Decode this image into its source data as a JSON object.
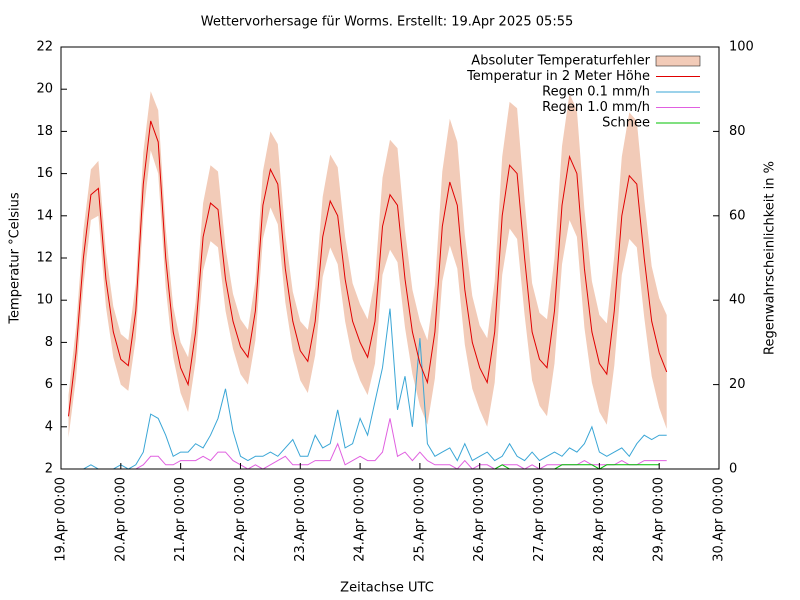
{
  "chart_data": {
    "type": "line",
    "title": "Wettervorhersage für Worms. Erstellt: 19.Apr 2025 05:55",
    "xlabel": "Zeitachse UTC",
    "ylabel": "Temperatur °Celsius",
    "y2label": "Regenwahrscheinlichkeit in %",
    "legend": "top-right",
    "x": [
      "2025-04-19 03:00",
      "2025-04-19 06:00",
      "2025-04-19 09:00",
      "2025-04-19 12:00",
      "2025-04-19 15:00",
      "2025-04-19 18:00",
      "2025-04-19 21:00",
      "2025-04-20 00:00",
      "2025-04-20 03:00",
      "2025-04-20 06:00",
      "2025-04-20 09:00",
      "2025-04-20 12:00",
      "2025-04-20 15:00",
      "2025-04-20 18:00",
      "2025-04-20 21:00",
      "2025-04-21 00:00",
      "2025-04-21 03:00",
      "2025-04-21 06:00",
      "2025-04-21 09:00",
      "2025-04-21 12:00",
      "2025-04-21 15:00",
      "2025-04-21 18:00",
      "2025-04-21 21:00",
      "2025-04-22 00:00",
      "2025-04-22 03:00",
      "2025-04-22 06:00",
      "2025-04-22 09:00",
      "2025-04-22 12:00",
      "2025-04-22 15:00",
      "2025-04-22 18:00",
      "2025-04-22 21:00",
      "2025-04-23 00:00",
      "2025-04-23 03:00",
      "2025-04-23 06:00",
      "2025-04-23 09:00",
      "2025-04-23 12:00",
      "2025-04-23 15:00",
      "2025-04-23 18:00",
      "2025-04-23 21:00",
      "2025-04-24 00:00",
      "2025-04-24 03:00",
      "2025-04-24 06:00",
      "2025-04-24 09:00",
      "2025-04-24 12:00",
      "2025-04-24 15:00",
      "2025-04-24 18:00",
      "2025-04-24 21:00",
      "2025-04-25 00:00",
      "2025-04-25 03:00",
      "2025-04-25 06:00",
      "2025-04-25 09:00",
      "2025-04-25 12:00",
      "2025-04-25 15:00",
      "2025-04-25 18:00",
      "2025-04-25 21:00",
      "2025-04-26 00:00",
      "2025-04-26 03:00",
      "2025-04-26 06:00",
      "2025-04-26 09:00",
      "2025-04-26 12:00",
      "2025-04-26 15:00",
      "2025-04-26 18:00",
      "2025-04-26 21:00",
      "2025-04-27 00:00",
      "2025-04-27 03:00",
      "2025-04-27 06:00",
      "2025-04-27 09:00",
      "2025-04-27 12:00",
      "2025-04-27 15:00",
      "2025-04-27 18:00",
      "2025-04-27 21:00",
      "2025-04-28 00:00",
      "2025-04-28 03:00",
      "2025-04-28 06:00",
      "2025-04-28 09:00",
      "2025-04-28 12:00",
      "2025-04-28 15:00",
      "2025-04-28 18:00",
      "2025-04-28 21:00",
      "2025-04-29 00:00",
      "2025-04-29 03:00"
    ],
    "series": [
      {
        "name": "Absoluter Temperaturfehler",
        "color": "#f2cbb8",
        "style": "errorband",
        "values": [
          1.0,
          1.2,
          1.3,
          1.2,
          1.3,
          1.3,
          1.2,
          1.2,
          1.2,
          1.3,
          1.5,
          1.4,
          1.5,
          1.4,
          1.2,
          1.2,
          1.3,
          1.4,
          1.6,
          1.8,
          1.8,
          1.5,
          1.3,
          1.3,
          1.3,
          1.4,
          1.6,
          1.8,
          1.9,
          1.6,
          1.4,
          1.4,
          1.5,
          1.6,
          1.9,
          2.2,
          2.3,
          2.0,
          1.8,
          1.8,
          1.8,
          2.0,
          2.3,
          2.6,
          2.7,
          2.3,
          2.0,
          2.0,
          2.0,
          2.2,
          2.6,
          3.0,
          3.0,
          2.6,
          2.2,
          2.0,
          2.1,
          2.4,
          2.8,
          3.0,
          3.1,
          2.7,
          2.3,
          2.2,
          2.3,
          2.5,
          2.8,
          3.0,
          3.0,
          2.8,
          2.4,
          2.3,
          2.4,
          2.6,
          2.8,
          3.0,
          3.0,
          2.8,
          2.6,
          2.6,
          2.7
        ]
      },
      {
        "name": "Temperatur in 2 Meter Höhe",
        "color": "#e00000",
        "values": [
          4.5,
          7.5,
          12,
          15,
          15.3,
          11,
          8.5,
          7.2,
          6.9,
          9.5,
          15.5,
          18.5,
          17.5,
          12,
          8.5,
          6.8,
          6.0,
          8.5,
          13,
          14.6,
          14.3,
          11,
          9,
          7.8,
          7.3,
          9.5,
          14.5,
          16.2,
          15.5,
          11.5,
          9,
          7.6,
          7.1,
          9,
          13,
          14.7,
          14,
          11,
          9,
          8,
          7.3,
          9,
          13.5,
          15,
          14.5,
          11,
          8.5,
          7,
          6.1,
          8.5,
          13.5,
          15.6,
          14.5,
          10.5,
          8,
          6.8,
          6.1,
          8.5,
          14,
          16.4,
          16,
          12,
          8.5,
          7.2,
          6.8,
          9.5,
          14.5,
          16.8,
          16,
          11.5,
          8.5,
          7,
          6.5,
          9.5,
          14,
          15.9,
          15.5,
          12,
          9,
          7.5,
          6.6
        ]
      },
      {
        "name": "Regen 0.1 mm/h",
        "color": "#3aa6d6",
        "axis": "y2",
        "values": [
          0,
          0,
          0,
          1,
          0,
          0,
          0,
          1,
          0,
          1,
          4,
          13,
          12,
          8,
          3,
          4,
          4,
          6,
          5,
          8,
          12,
          19,
          9,
          3,
          2,
          3,
          3,
          4,
          3,
          5,
          7,
          3,
          3,
          8,
          5,
          6,
          14,
          5,
          6,
          12,
          8,
          16,
          24,
          38,
          14,
          22,
          10,
          31,
          6,
          3,
          4,
          5,
          2,
          6,
          2,
          3,
          4,
          2,
          3,
          6,
          3,
          2,
          4,
          2,
          3,
          4,
          3,
          5,
          4,
          6,
          10,
          4,
          3,
          4,
          5,
          3,
          6,
          8,
          7,
          8,
          8
        ]
      },
      {
        "name": "Regen 1.0 mm/h",
        "color": "#e060e0",
        "axis": "y2",
        "values": [
          0,
          0,
          0,
          0,
          0,
          0,
          0,
          0,
          0,
          0,
          1,
          3,
          3,
          1,
          1,
          2,
          2,
          2,
          3,
          2,
          4,
          4,
          2,
          1,
          0,
          1,
          0,
          1,
          2,
          3,
          1,
          1,
          1,
          2,
          2,
          2,
          6,
          1,
          2,
          3,
          2,
          2,
          4,
          12,
          3,
          4,
          2,
          4,
          2,
          1,
          1,
          1,
          0,
          2,
          0,
          1,
          1,
          0,
          1,
          1,
          1,
          0,
          1,
          0,
          1,
          1,
          1,
          1,
          1,
          2,
          1,
          1,
          1,
          1,
          2,
          1,
          1,
          2,
          2,
          2,
          2
        ]
      },
      {
        "name": "Schnee",
        "color": "#00c000",
        "axis": "y2",
        "values": [
          null,
          null,
          null,
          null,
          null,
          null,
          null,
          null,
          null,
          null,
          null,
          null,
          null,
          null,
          null,
          null,
          null,
          null,
          null,
          null,
          null,
          null,
          null,
          null,
          null,
          null,
          null,
          null,
          null,
          null,
          null,
          null,
          null,
          null,
          null,
          null,
          null,
          null,
          null,
          null,
          null,
          null,
          null,
          null,
          null,
          null,
          null,
          null,
          null,
          null,
          null,
          null,
          null,
          null,
          null,
          null,
          0,
          0,
          1,
          0,
          0,
          0,
          0,
          0,
          0,
          0,
          1,
          1,
          1,
          1,
          1,
          0,
          1,
          1,
          1,
          1,
          1,
          1,
          1,
          1,
          null
        ]
      }
    ],
    "xlim": [
      "2025-04-19 00:00",
      "2025-04-30 00:00"
    ],
    "xticks": [
      {
        "value": "2025-04-19 00:00",
        "label": "19.Apr 00:00"
      },
      {
        "value": "2025-04-20 00:00",
        "label": "20.Apr 00:00"
      },
      {
        "value": "2025-04-21 00:00",
        "label": "21.Apr 00:00"
      },
      {
        "value": "2025-04-22 00:00",
        "label": "22.Apr 00:00"
      },
      {
        "value": "2025-04-23 00:00",
        "label": "23.Apr 00:00"
      },
      {
        "value": "2025-04-24 00:00",
        "label": "24.Apr 00:00"
      },
      {
        "value": "2025-04-25 00:00",
        "label": "25.Apr 00:00"
      },
      {
        "value": "2025-04-26 00:00",
        "label": "26.Apr 00:00"
      },
      {
        "value": "2025-04-27 00:00",
        "label": "27.Apr 00:00"
      },
      {
        "value": "2025-04-28 00:00",
        "label": "28.Apr 00:00"
      },
      {
        "value": "2025-04-29 00:00",
        "label": "29.Apr 00:00"
      },
      {
        "value": "2025-04-30 00:00",
        "label": "30.Apr 00:00"
      }
    ],
    "ylim": [
      2,
      22
    ],
    "yticks": [
      2,
      4,
      6,
      8,
      10,
      12,
      14,
      16,
      18,
      20,
      22
    ],
    "y2lim": [
      0,
      100
    ],
    "y2ticks": [
      0,
      20,
      40,
      60,
      80,
      100
    ],
    "grid": false
  }
}
